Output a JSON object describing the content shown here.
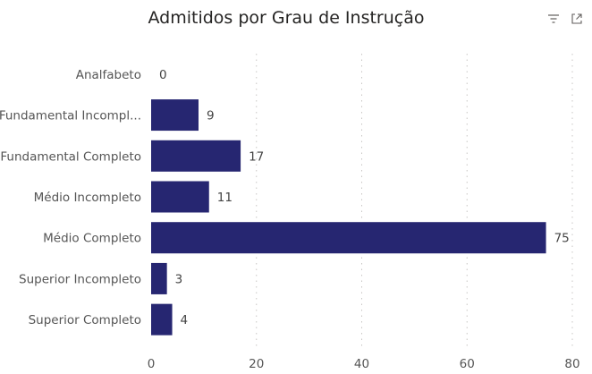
{
  "chart_data": {
    "type": "bar",
    "orientation": "horizontal",
    "title": "Admitidos por Grau de Instrução",
    "categories": [
      "Analfabeto",
      "Fundamental Incompl...",
      "Fundamental Completo",
      "Médio Incompleto",
      "Médio Completo",
      "Superior Incompleto",
      "Superior Completo"
    ],
    "values": [
      0,
      9,
      17,
      11,
      75,
      3,
      4
    ],
    "xlim": [
      0,
      80
    ],
    "xticks": [
      "0",
      "20",
      "40",
      "60",
      "80"
    ],
    "xtick_values": [
      0,
      20,
      40,
      60,
      80
    ],
    "grid": true,
    "bar_color": "#262671"
  },
  "toolbar": {
    "icons": [
      "filter-icon",
      "expand-icon"
    ]
  }
}
